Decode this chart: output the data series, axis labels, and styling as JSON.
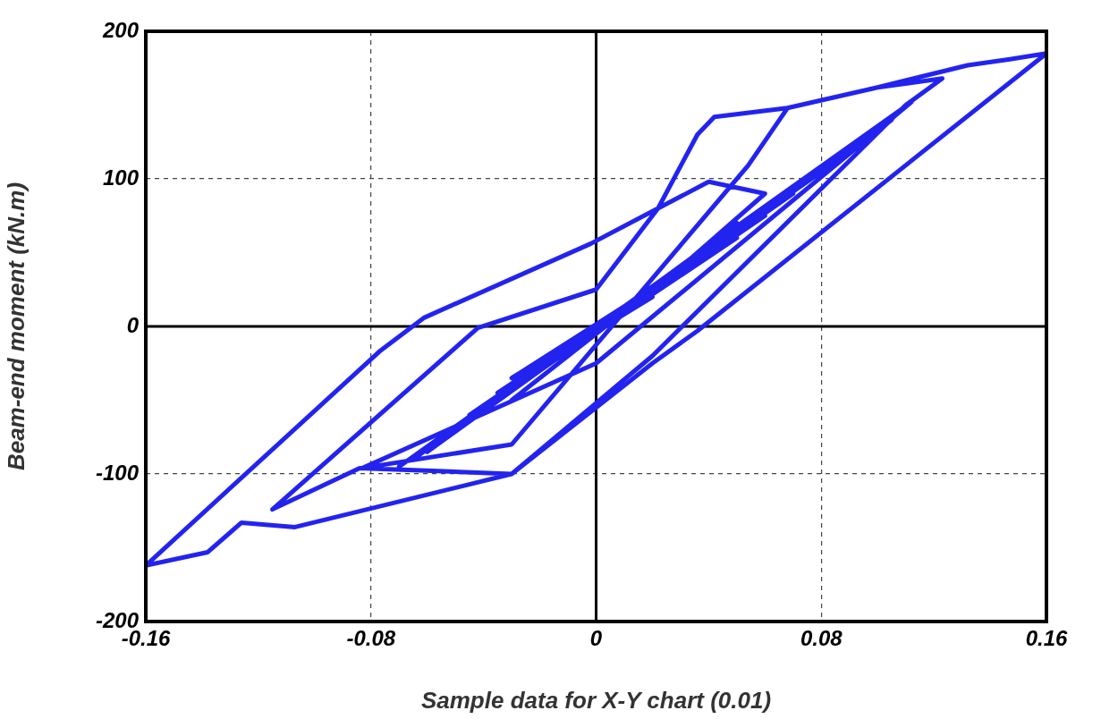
{
  "chart_data": {
    "type": "line",
    "xlabel": "Sample data for X-Y chart (0.01)",
    "ylabel": "Beam-end moment (kN.m)",
    "xlim": [
      -0.16,
      0.16
    ],
    "xticks": [
      -0.16,
      -0.08,
      0,
      0.08,
      0.16
    ],
    "ylim": [
      -200,
      200
    ],
    "yticks": [
      -200,
      -100,
      0,
      100,
      200
    ],
    "grid": true,
    "legend": false,
    "marker": "none",
    "line_style": "solid",
    "series": [
      {
        "color": "#2323f0",
        "x": [
          0,
          0.02,
          -0.02,
          0.03,
          -0.03,
          0.04,
          -0.035,
          0.05,
          -0.04,
          0.06,
          -0.045,
          0.07,
          -0.05,
          0.08,
          0.06,
          -0.055,
          0.09,
          0.07,
          -0.06,
          0.1,
          0.08,
          -0.065,
          0.105,
          0.09,
          -0.07,
          0.112,
          0.095,
          0,
          -0.083,
          -0.03,
          0.054,
          0.068,
          0.1,
          0.123,
          0.11,
          0.02,
          -0.03,
          -0.084,
          -0.115,
          -0.042,
          0.0,
          0.022,
          0.036,
          0.042,
          0.068,
          0.1,
          0.132,
          0.147,
          0.16,
          0.036,
          0.02,
          -0.03,
          -0.107,
          -0.126,
          -0.138,
          -0.16,
          -0.077,
          -0.061,
          -0.002,
          0.04,
          0.06,
          0.03,
          -0.02,
          0.05,
          -0.03,
          0.04,
          -0.01,
          0.02
        ],
        "values": [
          0,
          25,
          -25,
          35,
          -35,
          50,
          -45,
          60,
          -55,
          75,
          -60,
          90,
          -70,
          105,
          80,
          -75,
          120,
          95,
          -85,
          135,
          108,
          -90,
          140,
          118,
          -95,
          152,
          125,
          -25,
          -96,
          -80,
          109,
          148,
          162,
          168,
          150,
          -20,
          -100,
          -96,
          -124,
          -1,
          25,
          80,
          130,
          142,
          148,
          162,
          177,
          181,
          185,
          -3,
          -25,
          -100,
          -136,
          -133,
          -153,
          -162,
          -17,
          6,
          56,
          98,
          90,
          40,
          -35,
          70,
          -50,
          55,
          -15,
          20
        ]
      }
    ]
  }
}
